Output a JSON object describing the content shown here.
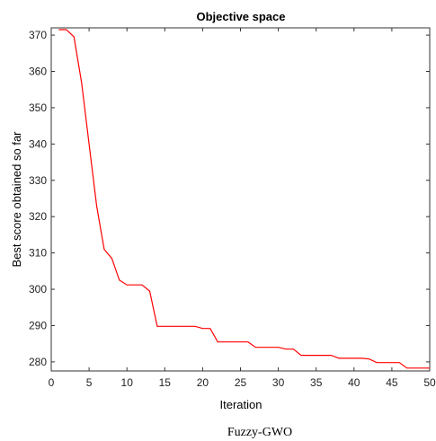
{
  "chart_data": {
    "type": "line",
    "title": "Objective space",
    "xlabel": "Iteration",
    "ylabel": "Best score obtained so far",
    "xlim": [
      0,
      50
    ],
    "ylim": [
      277.5,
      372
    ],
    "xticks": [
      0,
      5,
      10,
      15,
      20,
      25,
      30,
      35,
      40,
      45,
      50
    ],
    "yticks": [
      280,
      290,
      300,
      310,
      320,
      330,
      340,
      350,
      360,
      370
    ],
    "grid": false,
    "series": [
      {
        "color": "#ff0000",
        "x": [
          1,
          2,
          3,
          4,
          5,
          6,
          7,
          8,
          9,
          10,
          11,
          12,
          13,
          14,
          15,
          16,
          17,
          18,
          19,
          20,
          21,
          22,
          23,
          24,
          25,
          26,
          27,
          28,
          29,
          30,
          31,
          32,
          33,
          34,
          35,
          36,
          37,
          38,
          39,
          40,
          41,
          42,
          43,
          44,
          45,
          46,
          47,
          48,
          49,
          50
        ],
        "y": [
          371.5,
          371.5,
          369.5,
          357,
          340,
          323,
          311,
          308.5,
          302.5,
          301.2,
          301.2,
          301.2,
          299.5,
          289.8,
          289.8,
          289.8,
          289.8,
          289.8,
          289.8,
          289.2,
          289.2,
          285.5,
          285.5,
          285.5,
          285.5,
          285.5,
          284,
          284,
          284,
          284,
          283.5,
          283.5,
          281.8,
          281.8,
          281.8,
          281.8,
          281.8,
          281,
          281,
          281,
          281,
          280.8,
          279.8,
          279.8,
          279.8,
          279.8,
          278.3,
          278.3,
          278.3,
          278.3
        ]
      }
    ]
  },
  "caption": "Fuzzy-GWO"
}
